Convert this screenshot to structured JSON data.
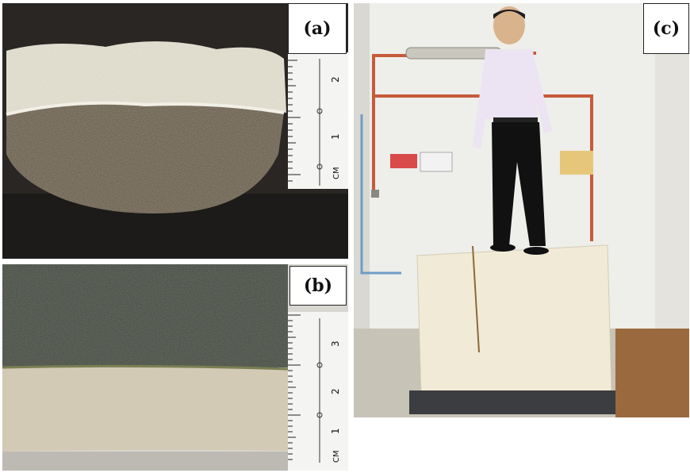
{
  "panels": {
    "a": {
      "label": "(a)",
      "ruler_marks": [
        "2",
        "1"
      ],
      "ruler_unit": "CM"
    },
    "b": {
      "label": "(b)",
      "ruler_marks": [
        "3",
        "2",
        "1"
      ],
      "ruler_unit": "CM"
    },
    "c": {
      "label": "(c)"
    }
  }
}
